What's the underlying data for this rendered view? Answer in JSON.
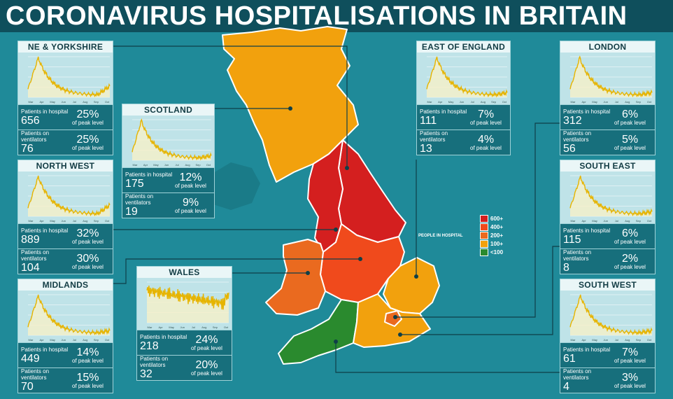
{
  "title": "CORONAVIRUS HOSPITALISATIONS IN BRITAIN",
  "legend": {
    "title": "PEOPLE IN HOSPITAL",
    "items": [
      {
        "label": "600+",
        "color": "#d41f1f"
      },
      {
        "label": "400+",
        "color": "#f04a1c"
      },
      {
        "label": "200+",
        "color": "#ea6a1f"
      },
      {
        "label": "100+",
        "color": "#f2a10d"
      },
      {
        "label": "<100",
        "color": "#2a8a2e"
      }
    ]
  },
  "labels": {
    "patients_hospital": "Patients in hospital",
    "patients_vent": "Patients on ventilators",
    "of_peak": "of peak level"
  },
  "regions": {
    "ne_yorkshire": {
      "name": "NE & YORKSHIRE",
      "hospital": "656",
      "hospital_pct": "25%",
      "vent": "76",
      "vent_pct": "25%",
      "color": "#d41f1f"
    },
    "scotland": {
      "name": "SCOTLAND",
      "hospital": "175",
      "hospital_pct": "12%",
      "vent": "19",
      "vent_pct": "9%",
      "color": "#f2a10d"
    },
    "north_west": {
      "name": "NORTH WEST",
      "hospital": "889",
      "hospital_pct": "32%",
      "vent": "104",
      "vent_pct": "30%",
      "color": "#d41f1f"
    },
    "midlands": {
      "name": "MIDLANDS",
      "hospital": "449",
      "hospital_pct": "14%",
      "vent": "70",
      "vent_pct": "15%",
      "color": "#f04a1c"
    },
    "wales": {
      "name": "WALES",
      "hospital": "218",
      "hospital_pct": "24%",
      "vent": "32",
      "vent_pct": "20%",
      "color": "#ea6a1f"
    },
    "east_england": {
      "name": "EAST OF ENGLAND",
      "hospital": "111",
      "hospital_pct": "7%",
      "vent": "13",
      "vent_pct": "4%",
      "color": "#f2a10d"
    },
    "london": {
      "name": "LONDON",
      "hospital": "312",
      "hospital_pct": "6%",
      "vent": "56",
      "vent_pct": "5%",
      "color": "#ea6a1f"
    },
    "south_east": {
      "name": "SOUTH EAST",
      "hospital": "115",
      "hospital_pct": "6%",
      "vent": "8",
      "vent_pct": "2%",
      "color": "#f2a10d"
    },
    "south_west": {
      "name": "SOUTH WEST",
      "hospital": "61",
      "hospital_pct": "7%",
      "vent": "4",
      "vent_pct": "3%",
      "color": "#2a8a2e"
    }
  },
  "chart_months": [
    "Mar",
    "Apr",
    "May",
    "Jun",
    "Jul",
    "Aug",
    "Sep",
    "Oct"
  ]
}
